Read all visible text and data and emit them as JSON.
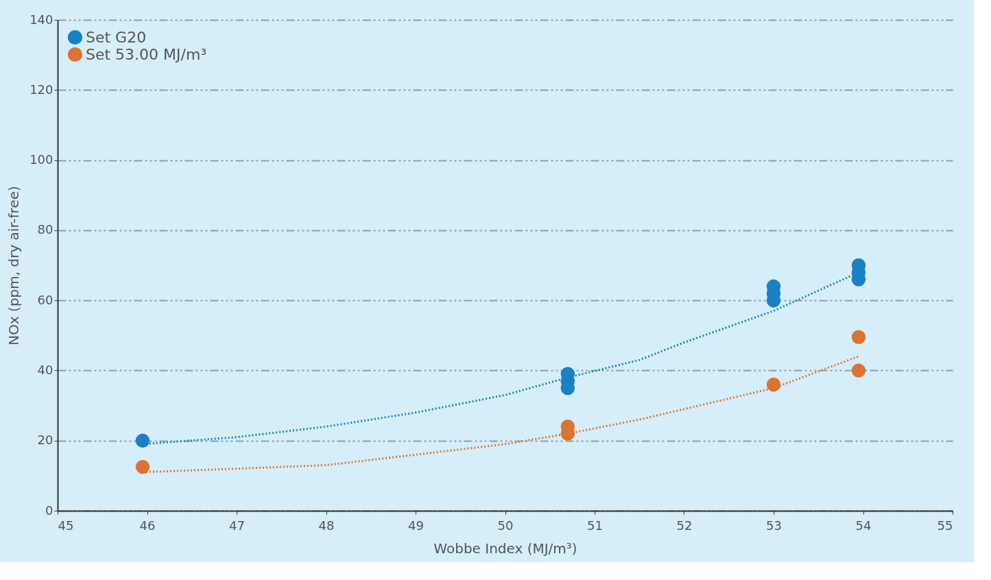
{
  "chart_data": {
    "type": "scatter",
    "xlabel": "Wobbe Index (MJ/m³)",
    "ylabel": "NOx (ppm, dry air-free)",
    "xlim": [
      45,
      55
    ],
    "xticks": [
      45,
      46,
      47,
      48,
      49,
      50,
      51,
      52,
      53,
      54,
      55
    ],
    "ylim": [
      0,
      140
    ],
    "yticks": [
      0,
      20,
      40,
      60,
      80,
      100,
      120,
      140
    ],
    "grid": "y",
    "legend": "top left",
    "marker": "circle",
    "series": [
      {
        "name": "Set G20",
        "color": "#1a80c4",
        "x": [
          45.95,
          50.7,
          50.7,
          50.7,
          53.0,
          53.0,
          53.0,
          53.95,
          53.95,
          53.95
        ],
        "values": [
          20,
          35,
          37,
          39,
          60,
          62,
          64,
          66,
          68,
          70
        ]
      },
      {
        "name": "Set 53.00 MJ/m³",
        "color": "#d97435",
        "x": [
          45.95,
          50.7,
          50.7,
          53.0,
          53.95,
          53.95
        ],
        "values": [
          12.5,
          22,
          24,
          36,
          40,
          49.5
        ]
      },
      {
        "color": "#1a80c4",
        "type": "line",
        "line_style": "dotted",
        "marker": "none",
        "x": [
          45.95,
          47,
          48,
          49,
          50,
          50.7,
          51.5,
          52,
          53,
          53.95
        ],
        "values": [
          19,
          21,
          24,
          28,
          33,
          38,
          43,
          48,
          57,
          68
        ]
      },
      {
        "color": "#d97435",
        "type": "line",
        "line_style": "dotted",
        "marker": "none",
        "x": [
          45.95,
          47,
          48,
          49,
          50,
          50.7,
          51.5,
          52,
          53,
          53.95
        ],
        "values": [
          11,
          12,
          13,
          16,
          19,
          22,
          26,
          29,
          35,
          44
        ]
      }
    ]
  }
}
